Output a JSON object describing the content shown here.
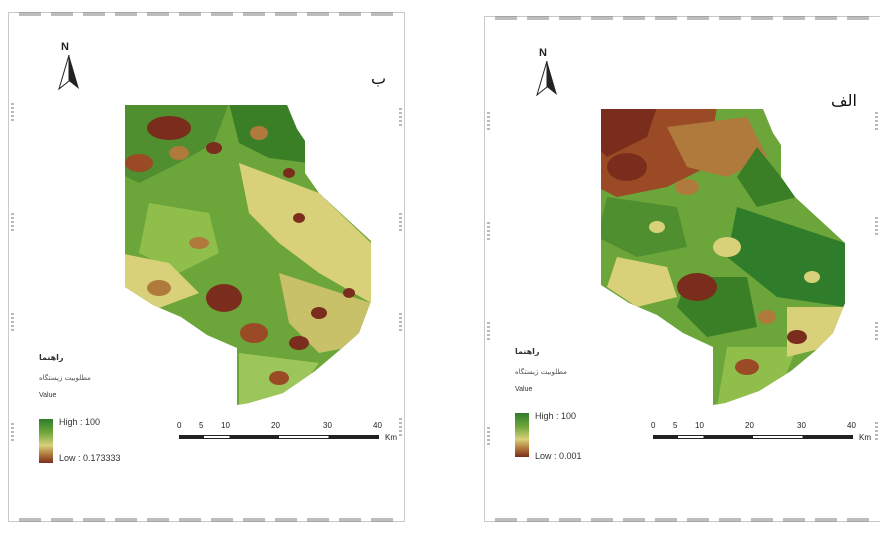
{
  "panels": [
    {
      "id": "left",
      "label": "ب",
      "north": "N",
      "legend": {
        "title": "راهنما",
        "subtitle": "مطلوبیت زیستگاه",
        "value_label": "Value",
        "high": "High : 100",
        "low": "Low : 0.173333"
      },
      "scale": {
        "ticks": [
          "0",
          "5",
          "10",
          "20",
          "30",
          "40"
        ],
        "unit": "Km"
      }
    },
    {
      "id": "right",
      "label": "الف",
      "north": "N",
      "legend": {
        "title": "راهنما",
        "subtitle": "مطلوبیت زیستگاه",
        "value_label": "Value",
        "high": "High : 100",
        "low": "Low : 0.001"
      },
      "scale": {
        "ticks": [
          "0",
          "5",
          "10",
          "20",
          "30",
          "40"
        ],
        "unit": "Km"
      }
    }
  ],
  "colors": {
    "high": "#2f7d2b",
    "mid_high": "#6ca53a",
    "mid": "#d9d17a",
    "mid_low": "#b07a3c",
    "low": "#7a2d1d"
  }
}
